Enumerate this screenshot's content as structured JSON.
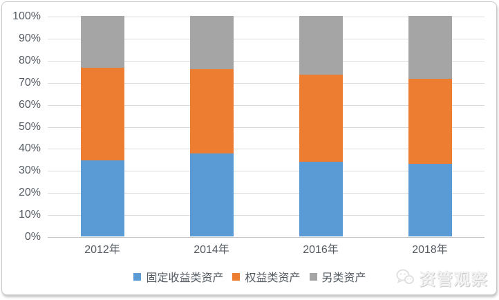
{
  "chart_data": {
    "type": "bar",
    "variant": "stacked-100-percent",
    "title": "",
    "xlabel": "",
    "ylabel": "",
    "categories": [
      "2012年",
      "2014年",
      "2016年",
      "2018年"
    ],
    "series": [
      {
        "name": "固定收益类资产",
        "color": "#5B9BD5",
        "values": [
          34.5,
          37.5,
          34,
          33
        ]
      },
      {
        "name": "权益类资产",
        "color": "#ED7D31",
        "values": [
          42,
          38.5,
          39.5,
          38.5
        ]
      },
      {
        "name": "另类资产",
        "color": "#A5A5A5",
        "values": [
          23.5,
          24,
          26.5,
          28.5
        ]
      }
    ],
    "y_axis": {
      "min": 0,
      "max": 100,
      "step": 10,
      "unit": "%",
      "tick_labels": [
        "0%",
        "10%",
        "20%",
        "30%",
        "40%",
        "50%",
        "60%",
        "70%",
        "80%",
        "90%",
        "100%"
      ]
    },
    "grid": true,
    "legend_position": "bottom"
  },
  "watermark": {
    "text": "资管观察",
    "icon": "wechat-icon"
  },
  "colors": {
    "background": "#FFFFFF",
    "card_border": "#C9C9C9",
    "gridline": "#D9D9D9",
    "axis_text": "#555B63",
    "watermark_text": "#F2F2F2"
  }
}
